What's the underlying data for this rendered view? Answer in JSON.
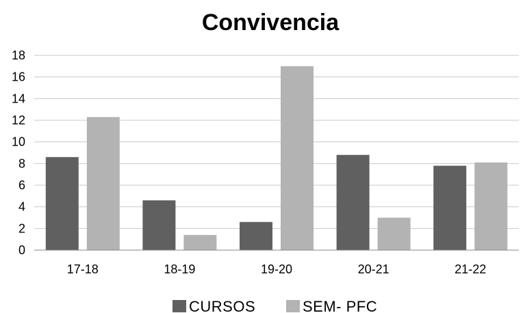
{
  "chart_data": {
    "type": "bar",
    "title": "Convivencia",
    "xlabel": "",
    "ylabel": "",
    "categories": [
      "17-18",
      "18-19",
      "19-20",
      "20-21",
      "21-22"
    ],
    "series": [
      {
        "name": "CURSOS",
        "color": "#606060",
        "values": [
          8.6,
          4.6,
          2.6,
          8.8,
          7.8
        ]
      },
      {
        "name": "SEM- PFC",
        "color": "#b3b3b3",
        "values": [
          12.3,
          1.4,
          17.0,
          3.0,
          8.1
        ]
      }
    ],
    "ylim": [
      0,
      18
    ],
    "yticks": [
      0,
      2,
      4,
      6,
      8,
      10,
      12,
      14,
      16,
      18
    ],
    "grid": true,
    "legend_position": "bottom"
  }
}
